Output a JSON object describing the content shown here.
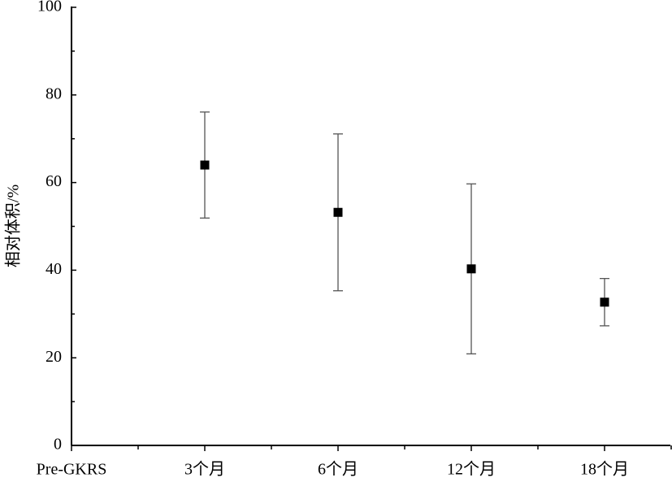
{
  "chart_data": {
    "type": "scatter",
    "y_label": "相对体积/%",
    "categories": [
      "Pre-GKRS",
      "3个月",
      "6个月",
      "12个月",
      "18个月"
    ],
    "values": [
      null,
      64.0,
      53.2,
      40.3,
      32.7
    ],
    "errors": [
      null,
      12.1,
      17.9,
      19.4,
      5.4
    ],
    "color": "#000000",
    "error_color": "#555555",
    "ylim": [
      0,
      100
    ],
    "yticks": [
      0,
      20,
      40,
      60,
      80,
      100
    ]
  }
}
